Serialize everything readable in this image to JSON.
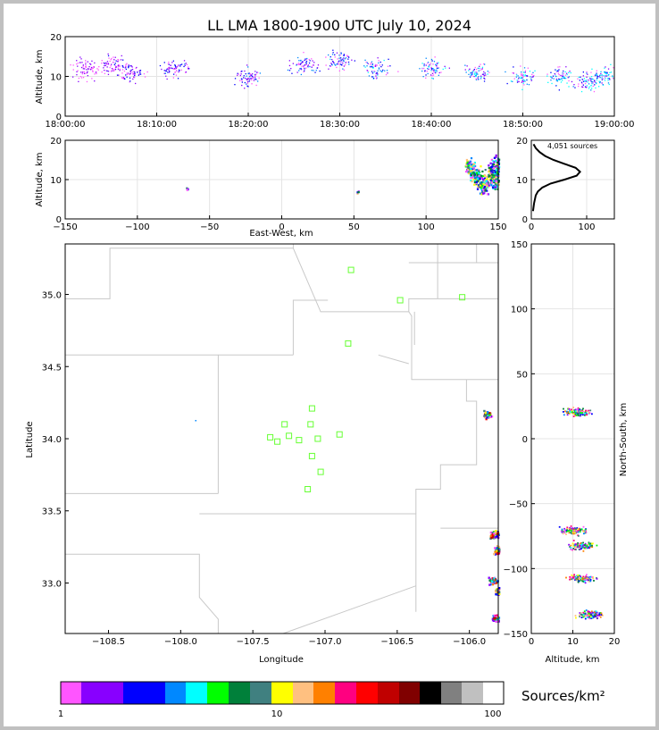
{
  "title": "LL LMA 1800-1900 UTC July 10, 2024",
  "panels": {
    "time_height": {
      "ylabel": "Altitude, km",
      "xticks": [
        "18:00:00",
        "18:10:00",
        "18:20:00",
        "18:30:00",
        "18:40:00",
        "18:50:00",
        "19:00:00"
      ],
      "yticks": [
        "0",
        "10",
        "20"
      ]
    },
    "ew_height": {
      "ylabel": "Altitude, km",
      "xlabel": "East-West, km",
      "xticks": [
        "−150",
        "−100",
        "−50",
        "0",
        "50",
        "100",
        "150"
      ],
      "yticks": [
        "0",
        "10",
        "20"
      ]
    },
    "histogram": {
      "label": "4,051 sources",
      "xticks": [
        "0",
        "100"
      ],
      "yticks": [
        "0",
        "10",
        "20"
      ]
    },
    "plan": {
      "xlabel": "Longitude",
      "ylabel": "Latitude",
      "xticks": [
        "−108.5",
        "−108.0",
        "−107.5",
        "−107.0",
        "−106.5",
        "−106.0"
      ],
      "yticks": [
        "33.0",
        "33.5",
        "34.0",
        "34.5",
        "35.0"
      ]
    },
    "ns_height": {
      "xlabel": "Altitude, km",
      "ylabel": "North-South, km",
      "xticks": [
        "0",
        "10",
        "20"
      ],
      "yticks": [
        "−150",
        "−100",
        "−50",
        "0",
        "50",
        "100",
        "150"
      ]
    }
  },
  "colorbar": {
    "label": "Sources/km²",
    "ticks": [
      "1",
      "10",
      "100"
    ],
    "colors": [
      "#ff55ff",
      "#8800ff",
      "#0000ff",
      "#0088ff",
      "#00ffff",
      "#00ff00",
      "#00803a",
      "#408080",
      "#ffff00",
      "#ffc080",
      "#ff8000",
      "#ff0080",
      "#ff0000",
      "#c00000",
      "#800000",
      "#000000",
      "#808080",
      "#c0c0c0",
      "#ffffff"
    ]
  },
  "chart_data": [
    {
      "type": "scatter",
      "panel": "time_height",
      "xlabel": "",
      "ylabel": "Altitude, km",
      "xlim": [
        "18:00:00",
        "19:00:00"
      ],
      "ylim": [
        0,
        20
      ],
      "grid": true,
      "series": [
        {
          "x": [
            "18:02:00",
            "18:05:00",
            "18:07:00",
            "18:12:00",
            "18:20:00",
            "18:26:00",
            "18:30:00",
            "18:34:00",
            "18:40:00",
            "18:45:00",
            "18:50:00",
            "18:54:00",
            "18:57:00",
            "18:59:00"
          ],
          "y": [
            12,
            13,
            11,
            12,
            10,
            13,
            14,
            12,
            12,
            11,
            10,
            10,
            9,
            10
          ]
        }
      ]
    },
    {
      "type": "scatter",
      "panel": "ew_height",
      "xlabel": "East-West, km",
      "ylabel": "Altitude, km",
      "xlim": [
        -150,
        150
      ],
      "ylim": [
        0,
        20
      ],
      "grid": true,
      "series": [
        {
          "x": [
            -66,
            52,
            130,
            135,
            140,
            145,
            148,
            150
          ],
          "y": [
            8,
            7,
            13,
            11,
            9,
            12,
            10,
            14
          ]
        }
      ]
    },
    {
      "type": "line",
      "panel": "histogram",
      "title": "4,051 sources",
      "xlim": [
        0,
        150
      ],
      "ylim": [
        0,
        20
      ],
      "x": [
        3,
        5,
        8,
        12,
        20,
        35,
        60,
        82,
        88,
        80,
        60,
        40,
        25,
        15,
        8,
        4
      ],
      "y": [
        2,
        4,
        6,
        7,
        8,
        9,
        10,
        11,
        12,
        13,
        14,
        15,
        16,
        17,
        18,
        19
      ]
    },
    {
      "type": "scatter",
      "panel": "plan",
      "xlabel": "Longitude",
      "ylabel": "Latitude",
      "xlim": [
        -108.8,
        -105.8
      ],
      "ylim": [
        32.65,
        35.35
      ],
      "grid": false,
      "stations": {
        "lon": [
          -106.82,
          -106.48,
          -106.05,
          -106.84,
          -107.09,
          -107.1,
          -107.28,
          -107.38,
          -107.33,
          -107.25,
          -107.18,
          -107.05,
          -106.9,
          -107.09,
          -107.03,
          -107.12
        ],
        "lat": [
          35.17,
          34.96,
          34.98,
          34.66,
          34.21,
          34.1,
          34.1,
          34.01,
          33.98,
          34.02,
          33.99,
          34.0,
          34.03,
          33.88,
          33.77,
          33.65
        ]
      },
      "series": [
        {
          "lon": [
            -105.88,
            -105.83,
            -105.81,
            -105.84,
            -105.8,
            -105.82
          ],
          "lat": [
            34.17,
            33.34,
            33.23,
            33.02,
            32.95,
            32.76
          ]
        }
      ]
    },
    {
      "type": "scatter",
      "panel": "ns_height",
      "xlabel": "Altitude, km",
      "ylabel": "North-South, km",
      "xlim": [
        0,
        20
      ],
      "ylim": [
        -150,
        150
      ],
      "grid": true,
      "series": [
        {
          "x": [
            11,
            10,
            12,
            12,
            14
          ],
          "y": [
            21,
            -70,
            -82,
            -107,
            -135
          ]
        }
      ]
    }
  ]
}
